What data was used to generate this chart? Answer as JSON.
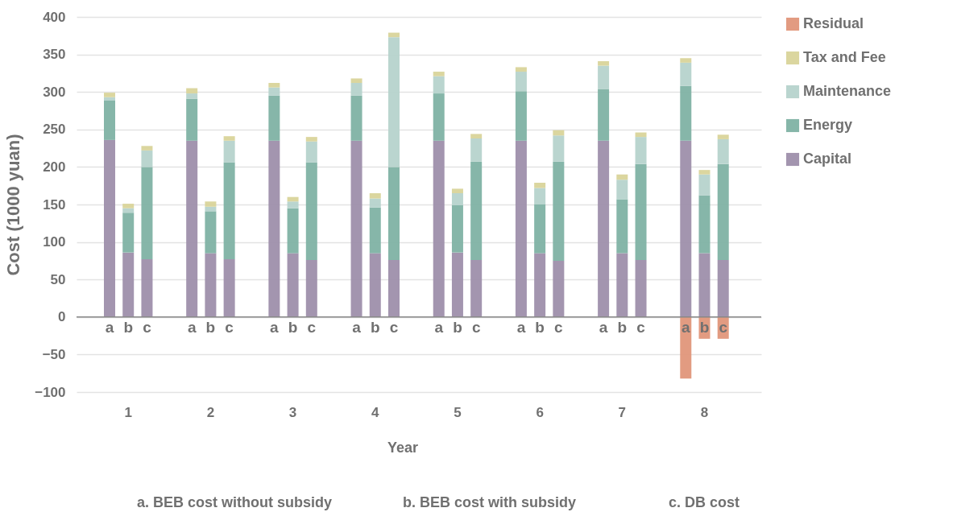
{
  "chart_data": {
    "type": "bar",
    "stacked": true,
    "categories": [
      "a",
      "b",
      "c",
      "a",
      "b",
      "c",
      "a",
      "b",
      "c",
      "a",
      "b",
      "c",
      "a",
      "b",
      "c",
      "a",
      "b",
      "c",
      "a",
      "b",
      "c",
      "a",
      "b",
      "c"
    ],
    "series": [
      {
        "name": "Capital",
        "color": "#9e8fab",
        "values": [
          236,
          86,
          77,
          235,
          85,
          77,
          235,
          85,
          76,
          235,
          85,
          76,
          235,
          86,
          76,
          235,
          85,
          75,
          235,
          85,
          76,
          235,
          85,
          76
        ]
      },
      {
        "name": "Energy",
        "color": "#7fb2a4",
        "values": [
          53,
          53,
          123,
          56,
          56,
          129,
          60,
          60,
          130,
          60,
          61,
          124,
          63,
          63,
          131,
          66,
          65,
          132,
          69,
          72,
          128,
          73,
          77,
          128
        ]
      },
      {
        "name": "Maintenance",
        "color": "#b6d3cc",
        "values": [
          4,
          6,
          22,
          7,
          6,
          29,
          11,
          9,
          28,
          17,
          12,
          173,
          23,
          16,
          31,
          26,
          22,
          35,
          31,
          26,
          36,
          31,
          28,
          33
        ]
      },
      {
        "name": "Tax and Fee",
        "color": "#d9d49a",
        "values": [
          6,
          6,
          6,
          7,
          7,
          6,
          6,
          6,
          6,
          6,
          7,
          6,
          6,
          6,
          6,
          6,
          7,
          7,
          6,
          7,
          6,
          6,
          6,
          6
        ]
      },
      {
        "name": "Residual",
        "color": "#e0967a",
        "values": [
          null,
          null,
          null,
          null,
          null,
          null,
          null,
          null,
          null,
          null,
          null,
          null,
          null,
          null,
          null,
          null,
          null,
          null,
          null,
          null,
          null,
          -82,
          -29,
          -29
        ]
      }
    ],
    "xlabel": "Year",
    "ylabel": "Cost (1000 yuan)",
    "ylim": [
      -100,
      400
    ],
    "yticks": [
      -100,
      -50,
      0,
      50,
      100,
      150,
      200,
      250,
      300,
      350,
      400
    ],
    "grid": "y",
    "legend": "right",
    "annotations": [
      "1",
      "2",
      "3",
      "4",
      "5",
      "6",
      "7",
      "8",
      "a. BEB cost without subsidy",
      "b. BEB cost with subsidy",
      "c. DB cost"
    ]
  }
}
